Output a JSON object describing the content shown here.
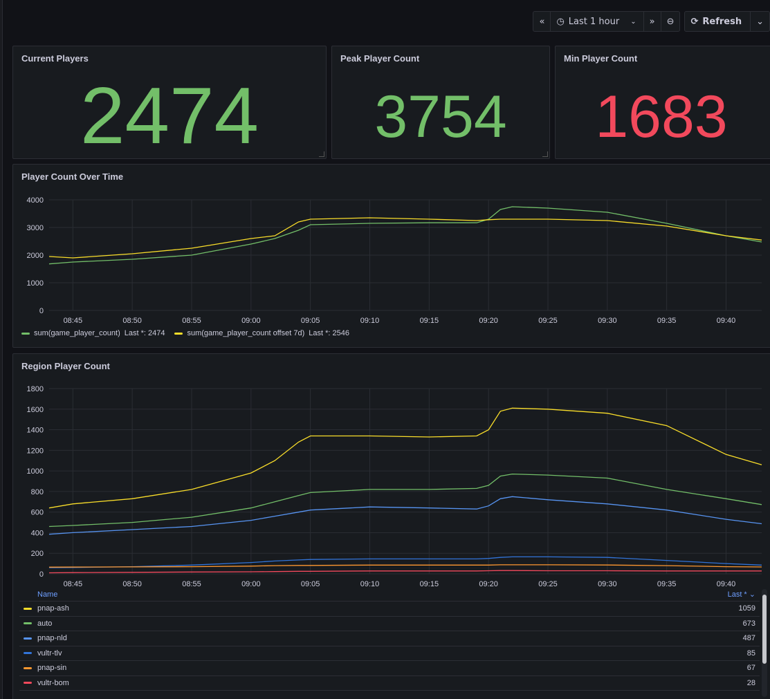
{
  "toolbar": {
    "time_range_label": "Last 1 hour",
    "refresh_label": "Refresh"
  },
  "stats": [
    {
      "title": "Current Players",
      "value": "2474",
      "color": "#73bf69"
    },
    {
      "title": "Peak Player Count",
      "value": "3754",
      "color": "#73bf69"
    },
    {
      "title": "Min Player Count",
      "value": "1683",
      "color": "#f2495c"
    }
  ],
  "player_chart": {
    "title": "Player Count Over Time",
    "legend": [
      {
        "name": "sum(game_player_count)",
        "last": "Last *: 2474",
        "color": "#73bf69"
      },
      {
        "name": "sum(game_player_count offset 7d)",
        "last": "Last *: 2546",
        "color": "#fade2a"
      }
    ]
  },
  "region_chart": {
    "title": "Region Player Count",
    "table_header": {
      "name": "Name",
      "last": "Last *"
    },
    "rows": [
      {
        "name": "pnap-ash",
        "last": "1059",
        "color": "#fade2a"
      },
      {
        "name": "auto",
        "last": "673",
        "color": "#73bf69"
      },
      {
        "name": "pnap-nld",
        "last": "487",
        "color": "#5794f2"
      },
      {
        "name": "vultr-tlv",
        "last": "85",
        "color": "#3274d9"
      },
      {
        "name": "pnap-sin",
        "last": "67",
        "color": "#ff9830"
      },
      {
        "name": "vultr-bom",
        "last": "28",
        "color": "#f2495c"
      }
    ]
  },
  "chart_data": [
    {
      "type": "line",
      "title": "Player Count Over Time",
      "x_ticks": [
        "08:45",
        "08:50",
        "08:55",
        "09:00",
        "09:05",
        "09:10",
        "09:15",
        "09:20",
        "09:25",
        "09:30",
        "09:35",
        "09:40"
      ],
      "y_ticks": [
        0,
        1000,
        2000,
        3000,
        4000
      ],
      "ylim": [
        0,
        4000
      ],
      "x": [
        "08:43",
        "08:45",
        "08:50",
        "08:55",
        "09:00",
        "09:02",
        "09:04",
        "09:05",
        "09:10",
        "09:15",
        "09:19",
        "09:20",
        "09:21",
        "09:22",
        "09:25",
        "09:30",
        "09:35",
        "09:40",
        "09:43"
      ],
      "series": [
        {
          "name": "sum(game_player_count)",
          "color": "#73bf69",
          "values": [
            1683,
            1750,
            1850,
            2000,
            2400,
            2600,
            2900,
            3100,
            3150,
            3170,
            3170,
            3300,
            3650,
            3750,
            3700,
            3550,
            3150,
            2700,
            2474
          ]
        },
        {
          "name": "sum(game_player_count offset 7d)",
          "color": "#fade2a",
          "values": [
            1950,
            1900,
            2050,
            2250,
            2600,
            2700,
            3200,
            3300,
            3350,
            3300,
            3250,
            3280,
            3300,
            3300,
            3300,
            3250,
            3050,
            2700,
            2546
          ]
        }
      ]
    },
    {
      "type": "line",
      "title": "Region Player Count",
      "x_ticks": [
        "08:45",
        "08:50",
        "08:55",
        "09:00",
        "09:05",
        "09:10",
        "09:15",
        "09:20",
        "09:25",
        "09:30",
        "09:35",
        "09:40"
      ],
      "y_ticks": [
        0,
        200,
        400,
        600,
        800,
        1000,
        1200,
        1400,
        1600,
        1800
      ],
      "ylim": [
        0,
        1800
      ],
      "x": [
        "08:43",
        "08:45",
        "08:50",
        "08:55",
        "09:00",
        "09:02",
        "09:04",
        "09:05",
        "09:10",
        "09:15",
        "09:19",
        "09:20",
        "09:21",
        "09:22",
        "09:25",
        "09:30",
        "09:35",
        "09:40",
        "09:43"
      ],
      "series": [
        {
          "name": "pnap-ash",
          "color": "#fade2a",
          "values": [
            640,
            680,
            730,
            820,
            980,
            1100,
            1280,
            1340,
            1340,
            1330,
            1340,
            1400,
            1580,
            1610,
            1600,
            1560,
            1440,
            1160,
            1059
          ]
        },
        {
          "name": "auto",
          "color": "#73bf69",
          "values": [
            460,
            470,
            500,
            550,
            640,
            700,
            760,
            790,
            820,
            820,
            830,
            860,
            950,
            970,
            960,
            930,
            820,
            730,
            673
          ]
        },
        {
          "name": "pnap-nld",
          "color": "#5794f2",
          "values": [
            385,
            400,
            430,
            460,
            520,
            560,
            600,
            620,
            650,
            640,
            630,
            660,
            730,
            750,
            720,
            680,
            620,
            530,
            487
          ]
        },
        {
          "name": "vultr-tlv",
          "color": "#3274d9",
          "values": [
            60,
            62,
            70,
            85,
            110,
            125,
            135,
            140,
            145,
            145,
            145,
            150,
            160,
            165,
            165,
            160,
            130,
            100,
            85
          ]
        },
        {
          "name": "pnap-sin",
          "color": "#ff9830",
          "values": [
            65,
            66,
            68,
            70,
            75,
            80,
            82,
            82,
            85,
            85,
            85,
            85,
            88,
            88,
            88,
            86,
            80,
            70,
            67
          ]
        },
        {
          "name": "vultr-bom",
          "color": "#f2495c",
          "values": [
            10,
            12,
            15,
            18,
            20,
            22,
            25,
            25,
            28,
            28,
            28,
            30,
            32,
            32,
            30,
            30,
            28,
            28,
            28
          ]
        }
      ]
    }
  ]
}
